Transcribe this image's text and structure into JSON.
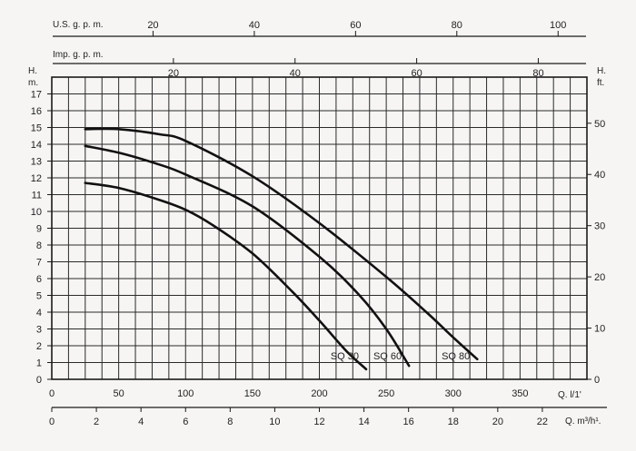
{
  "chart_data": {
    "type": "line",
    "title": "",
    "grid": true,
    "x_main": {
      "label": "Q. l/1'",
      "ticks": [
        0,
        50,
        100,
        150,
        200,
        250,
        300,
        350
      ],
      "range": [
        0,
        400
      ]
    },
    "x_m3h": {
      "label": "Q. m³/h¹.",
      "ticks": [
        0,
        2,
        4,
        6,
        8,
        10,
        12,
        14,
        16,
        18,
        20,
        22
      ],
      "range": [
        0,
        24
      ]
    },
    "x_usgpm": {
      "label": "U.S. g. p. m.",
      "ticks": [
        20,
        40,
        60,
        80,
        100
      ],
      "range": [
        0,
        105.7
      ]
    },
    "x_impgpm": {
      "label": "Imp. g. p. m.",
      "ticks": [
        20,
        40,
        60,
        80
      ],
      "range": [
        0,
        88
      ]
    },
    "y_left": {
      "label_line1": "H.",
      "label_line2": "m.",
      "ticks": [
        0,
        1,
        2,
        3,
        4,
        5,
        6,
        7,
        8,
        9,
        10,
        11,
        12,
        13,
        14,
        15,
        16,
        17
      ],
      "range": [
        0,
        18
      ]
    },
    "y_right": {
      "label_line1": "H.",
      "label_line2": "ft.",
      "ticks": [
        0,
        10,
        20,
        30,
        40,
        50
      ],
      "range": [
        0,
        59
      ]
    },
    "series": [
      {
        "name": "SQ 30",
        "x": [
          25,
          50,
          80,
          100,
          120,
          150,
          180,
          200,
          220,
          235
        ],
        "y": [
          11.7,
          11.4,
          10.7,
          10.1,
          9.2,
          7.5,
          5.2,
          3.5,
          1.7,
          0.6
        ]
      },
      {
        "name": "SQ 60",
        "x": [
          25,
          50,
          80,
          100,
          150,
          200,
          230,
          250,
          267
        ],
        "y": [
          13.9,
          13.5,
          12.8,
          12.2,
          10.3,
          7.3,
          5.0,
          3.0,
          0.8
        ]
      },
      {
        "name": "SQ 80",
        "x": [
          25,
          50,
          80,
          100,
          150,
          200,
          250,
          280,
          300,
          318
        ],
        "y": [
          14.9,
          14.9,
          14.6,
          14.2,
          12.1,
          9.3,
          6.1,
          4.0,
          2.5,
          1.2
        ]
      }
    ]
  }
}
